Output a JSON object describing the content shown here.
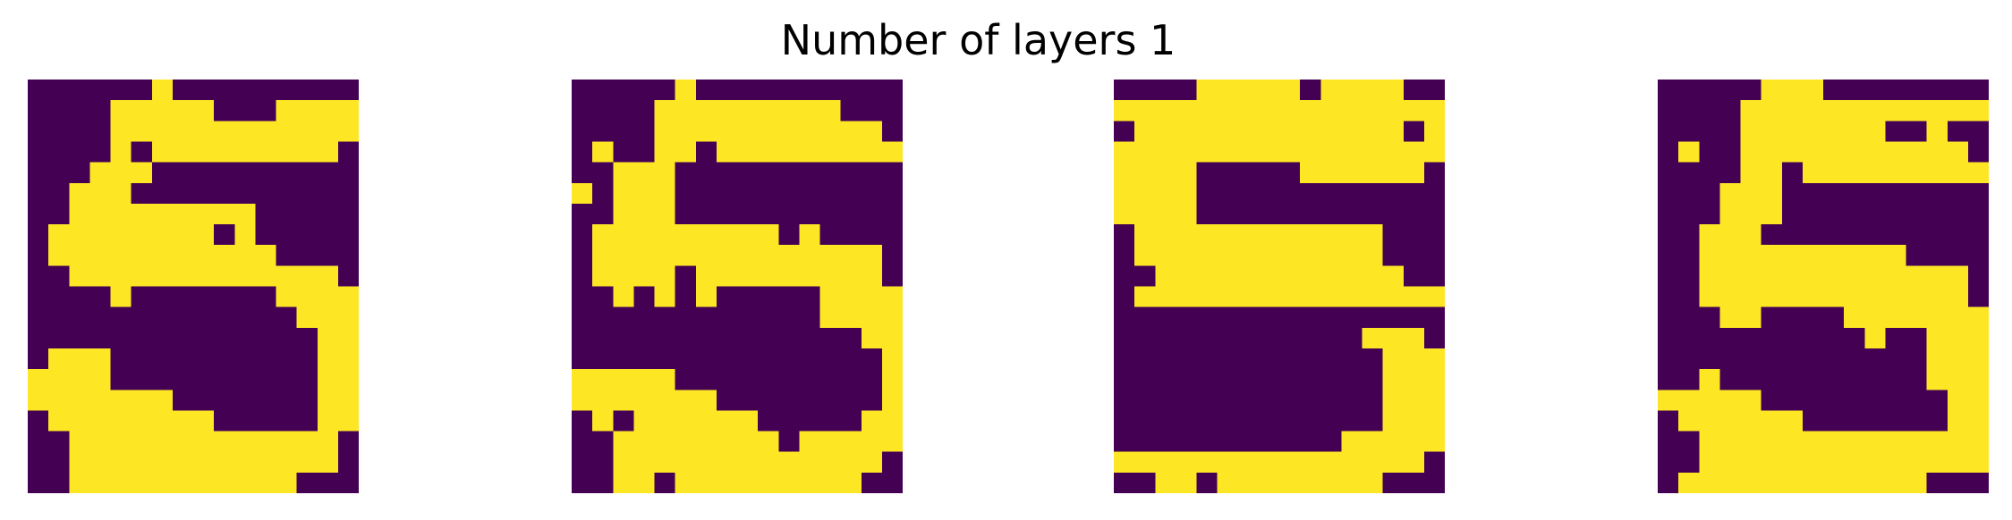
{
  "figure": {
    "title": "Number of layers 1"
  },
  "colors": {
    "low": "#440154",
    "high": "#fde725",
    "background": "#ffffff"
  },
  "chart_data": [
    {
      "type": "heatmap",
      "rows": [
        "0000001000000000",
        "0000111110001111",
        "0000111111111111",
        "0000101111111110",
        "0001110000000000",
        "0011100000000000",
        "0011111111100000",
        "0111111110100000",
        "0111111111110000",
        "0011111111111110",
        "0000100000001111",
        "0000000000000111",
        "0000000000000011",
        "0111000000000011",
        "1111000000000011",
        "1111111000000011",
        "0111111110000011",
        "0011111111111110",
        "0011111111111110",
        "0011111111111000"
      ]
    },
    {
      "type": "heatmap",
      "rows": [
        "0000010000000000",
        "0000111111111000",
        "0000111111111110",
        "0100110111111111",
        "0011100000000000",
        "1011100000000000",
        "0011100000000000",
        "0111111111010000",
        "0111111111111110",
        "0111101111111110",
        "0010101000001111",
        "0000000000001111",
        "0000000000000011",
        "0000000000000001",
        "1111100000000001",
        "1111111000000001",
        "0101111110000011",
        "0011111111011111",
        "0011111111111110",
        "0011011111111100"
      ]
    },
    {
      "type": "heatmap",
      "rows": [
        "0000111110111100",
        "1111111111111111",
        "0111111111111101",
        "1111111111111111",
        "1111000001111110",
        "1111000000000000",
        "1111000000000000",
        "0111111111111000",
        "0111111111111000",
        "0011111111111100",
        "0111111111111111",
        "0000000000000000",
        "0000000000001110",
        "0000000000000111",
        "0000000000000111",
        "0000000000000111",
        "0000000000000111",
        "0000000000011111",
        "1111111111111110",
        "0011011111111000"
      ]
    },
    {
      "type": "heatmap",
      "rows": [
        "0000011100000000",
        "0000111111111111",
        "0000111111100100",
        "0100111111111110",
        "0000110111111111",
        "0001110000000000",
        "0001110000000000",
        "0011100000000000",
        "0011111111110000",
        "0011111111111110",
        "0011111111111110",
        "0001100001111111",
        "0000000000100111",
        "0000000000000111",
        "0010000000000111",
        "1111100000000011",
        "0111111000000011",
        "0011111111111111",
        "0011111111111111",
        "0111111111111000"
      ]
    }
  ]
}
